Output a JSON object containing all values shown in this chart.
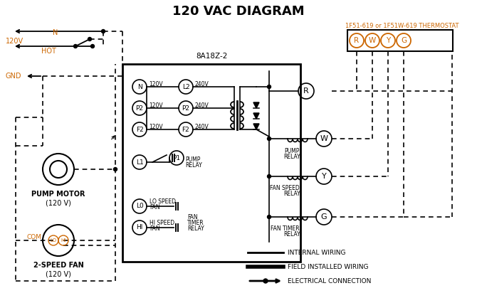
{
  "title": "120 VAC DIAGRAM",
  "title_fontsize": 13,
  "background_color": "#ffffff",
  "thermostat_label": "1F51-619 or 1F51W-619 THERMOSTAT",
  "controller_label": "8A18Z-2",
  "terminals": [
    "R",
    "W",
    "Y",
    "G"
  ],
  "orange_color": "#cc6600",
  "black_color": "#000000",
  "fig_w": 6.7,
  "fig_h": 4.19,
  "dpi": 100
}
